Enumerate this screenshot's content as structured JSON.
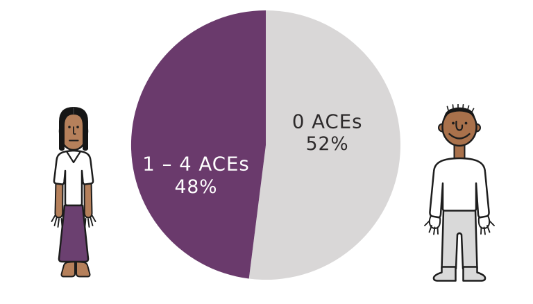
{
  "chart_data": {
    "type": "pie",
    "title": "",
    "categories": [
      "0 ACEs",
      "1 – 4 ACEs"
    ],
    "values": [
      52,
      48
    ],
    "slices": [
      {
        "label": "0 ACEs",
        "value": 52,
        "value_label": "52%",
        "color": "#D9D7D7",
        "text_color": "#2D2A2B"
      },
      {
        "label": "1 – 4 ACEs",
        "value": 48,
        "value_label": "48%",
        "color": "#6A3A6C",
        "text_color": "#FFFFFF"
      }
    ],
    "start_angle_deg": 0,
    "direction": "clockwise",
    "labels_inside": true,
    "legend": "none"
  },
  "illustrations": {
    "left": {
      "name": "woman-figure",
      "skin": "#B5805B",
      "hair": "#161616",
      "top": "#FFFFFF",
      "skirt": "#6B4070"
    },
    "right": {
      "name": "man-figure",
      "skin": "#A9714B",
      "hair": "#161616",
      "shirt": "#FFFFFF",
      "pants": "#D9D9D9"
    }
  },
  "canvas": {
    "background": "#FFFFFF",
    "outline": "#1D1D1D"
  }
}
